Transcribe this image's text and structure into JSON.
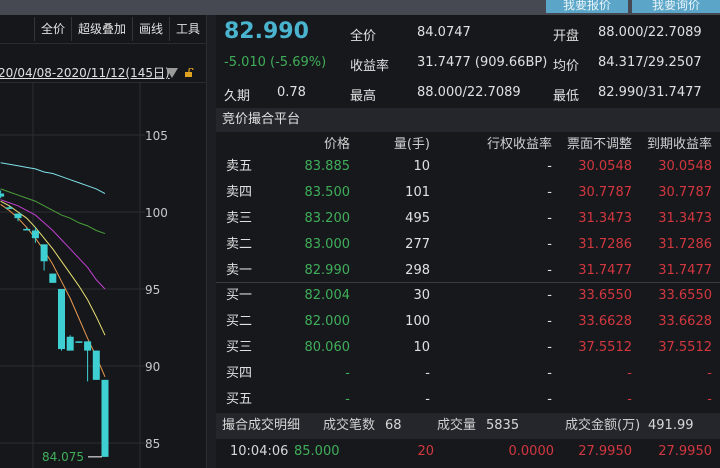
{
  "top_buttons": {
    "quote": "我要报价",
    "inquiry": "我要询价"
  },
  "chart_toolbar": [
    "全价",
    "超级叠加",
    "画线",
    "工具"
  ],
  "date_range": "20/04/08-2020/11/12(145日)",
  "chart": {
    "y_ticks": [
      105,
      100,
      95,
      90,
      85
    ],
    "last_price_label": "84.075",
    "candle_color": "#3ecfd3",
    "candles": [
      {
        "o": 101.2,
        "h": 101.4,
        "l": 100.9,
        "c": 101.0
      },
      {
        "o": 100.3,
        "h": 100.4,
        "l": 100.2,
        "c": 100.3
      },
      {
        "o": 99.9,
        "h": 99.9,
        "l": 99.4,
        "c": 99.6
      },
      {
        "o": 98.9,
        "h": 99.0,
        "l": 98.9,
        "c": 98.9
      },
      {
        "o": 98.8,
        "h": 99.0,
        "l": 98.0,
        "c": 98.3
      },
      {
        "o": 97.9,
        "h": 97.9,
        "l": 96.2,
        "c": 96.8
      },
      {
        "o": 96.0,
        "h": 96.0,
        "l": 95.4,
        "c": 95.4
      },
      {
        "o": 95.0,
        "h": 95.0,
        "l": 91.0,
        "c": 91.1
      },
      {
        "o": 91.9,
        "h": 92.0,
        "l": 91.0,
        "c": 91.0
      },
      {
        "o": 91.6,
        "h": 91.6,
        "l": 91.5,
        "c": 91.55
      },
      {
        "o": 91.6,
        "h": 91.6,
        "l": 89.0,
        "c": 91.0
      },
      {
        "o": 91.0,
        "h": 91.0,
        "l": 89.1,
        "c": 89.1
      },
      {
        "o": 89.1,
        "h": 89.1,
        "l": 84.1,
        "c": 84.1
      }
    ],
    "ma_lines": [
      {
        "color": "#7fe0e8",
        "values": [
          103.2,
          103.1,
          103.0,
          102.9,
          102.8,
          102.6,
          102.5,
          102.3,
          102.1,
          101.9,
          101.7,
          101.5,
          101.2
        ]
      },
      {
        "color": "#4aa03a",
        "values": [
          101.5,
          101.3,
          101.1,
          100.9,
          100.7,
          100.4,
          100.1,
          99.8,
          99.6,
          99.3,
          99.1,
          98.8,
          98.6
        ]
      },
      {
        "color": "#c040d0",
        "values": [
          100.8,
          100.6,
          100.4,
          100.1,
          99.8,
          99.3,
          98.8,
          98.2,
          97.6,
          97.0,
          96.4,
          95.6,
          95.0
        ]
      },
      {
        "color": "#e8e070",
        "values": [
          100.7,
          100.4,
          100.0,
          99.6,
          99.0,
          98.3,
          97.6,
          96.8,
          96.0,
          95.2,
          94.3,
          93.2,
          92.0
        ]
      },
      {
        "color": "#e89a50",
        "values": [
          100.5,
          100.1,
          99.6,
          99.0,
          98.3,
          97.5,
          96.6,
          95.5,
          94.4,
          93.1,
          91.8,
          90.6,
          89.3
        ]
      }
    ]
  },
  "quote": {
    "price": "82.990",
    "change": "-5.010 (-5.69%)",
    "duration_label": "久期",
    "duration": "0.78",
    "full_price_label": "全价",
    "full_price": "84.0747",
    "yield_label": "收益率",
    "yield": "31.7477 (909.66BP)",
    "high_label": "最高",
    "high": "88.000/22.7089",
    "open_label": "开盘",
    "open": "88.000/22.7089",
    "avg_label": "均价",
    "avg": "84.317/29.2507",
    "low_label": "最低",
    "low": "82.990/31.7477"
  },
  "book": {
    "title": "竞价撮合平台",
    "headers": [
      "",
      "价格",
      "量(手)",
      "行权收益率",
      "票面不调整",
      "到期收益率"
    ],
    "asks": [
      [
        "卖五",
        "83.885",
        "10",
        "-",
        "30.0548",
        "30.0548"
      ],
      [
        "卖四",
        "83.500",
        "101",
        "-",
        "30.7787",
        "30.7787"
      ],
      [
        "卖三",
        "83.200",
        "495",
        "-",
        "31.3473",
        "31.3473"
      ],
      [
        "卖二",
        "83.000",
        "277",
        "-",
        "31.7286",
        "31.7286"
      ],
      [
        "卖一",
        "82.990",
        "298",
        "-",
        "31.7477",
        "31.7477"
      ]
    ],
    "bids": [
      [
        "买一",
        "82.004",
        "30",
        "-",
        "33.6550",
        "33.6550"
      ],
      [
        "买二",
        "82.000",
        "100",
        "-",
        "33.6628",
        "33.6628"
      ],
      [
        "买三",
        "80.060",
        "10",
        "-",
        "37.5512",
        "37.5512"
      ],
      [
        "买四",
        "-",
        "-",
        "-",
        "-",
        "-"
      ],
      [
        "买五",
        "-",
        "-",
        "-",
        "-",
        "-"
      ]
    ]
  },
  "trades": {
    "title": "撮合成交明细",
    "count_label": "成交笔数",
    "count": "68",
    "volume_label": "成交量",
    "volume": "5835",
    "amount_label": "成交金额(万)",
    "amount": "491.99",
    "rows": [
      [
        "10:04:06",
        "85.000",
        "20",
        "0.0000",
        "27.9950",
        "27.9950"
      ]
    ]
  }
}
